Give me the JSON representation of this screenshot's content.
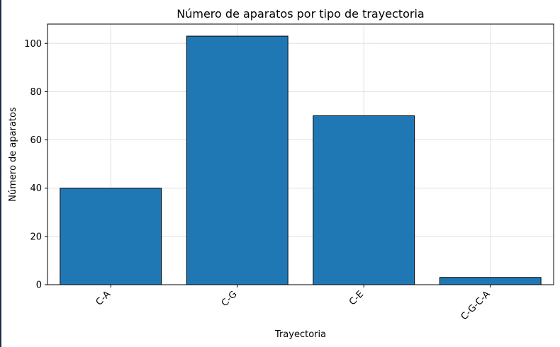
{
  "chart_data": {
    "type": "bar",
    "title": "Número de aparatos por tipo de trayectoria",
    "xlabel": "Trayectoria",
    "ylabel": "Número de aparatos",
    "categories": [
      "C-A",
      "C-G",
      "C-E",
      "C-G-C-A"
    ],
    "values": [
      40,
      103,
      70,
      3
    ],
    "ylim": [
      0,
      108
    ],
    "yticks": [
      0,
      20,
      40,
      60,
      80,
      100
    ],
    "grid": true,
    "legend": "none",
    "colors": {
      "bar": "#1f77b4",
      "edge": "#000000",
      "grid": "#e0e0e0"
    }
  }
}
